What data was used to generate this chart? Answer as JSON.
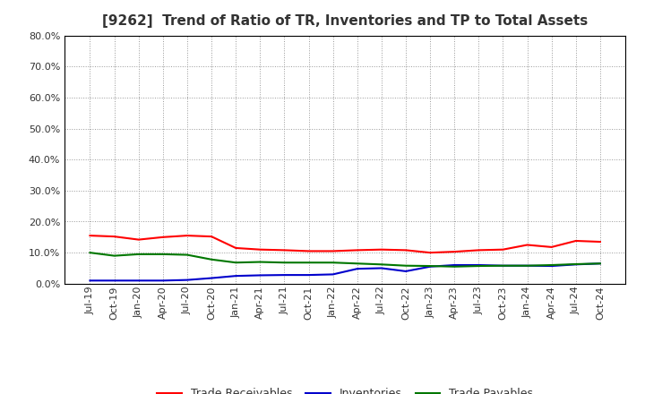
{
  "title": "[9262]  Trend of Ratio of TR, Inventories and TP to Total Assets",
  "x_labels": [
    "Jul-19",
    "Oct-19",
    "Jan-20",
    "Apr-20",
    "Jul-20",
    "Oct-20",
    "Jan-21",
    "Apr-21",
    "Jul-21",
    "Oct-21",
    "Jan-22",
    "Apr-22",
    "Jul-22",
    "Oct-22",
    "Jan-23",
    "Apr-23",
    "Jul-23",
    "Oct-23",
    "Jan-24",
    "Apr-24",
    "Jul-24",
    "Oct-24"
  ],
  "trade_receivables": [
    0.155,
    0.152,
    0.142,
    0.15,
    0.155,
    0.152,
    0.115,
    0.11,
    0.108,
    0.105,
    0.105,
    0.108,
    0.11,
    0.108,
    0.1,
    0.103,
    0.108,
    0.11,
    0.125,
    0.118,
    0.138,
    0.135
  ],
  "inventories": [
    0.01,
    0.01,
    0.01,
    0.01,
    0.012,
    0.018,
    0.025,
    0.027,
    0.028,
    0.028,
    0.03,
    0.048,
    0.05,
    0.04,
    0.055,
    0.06,
    0.06,
    0.058,
    0.058,
    0.057,
    0.062,
    0.065
  ],
  "trade_payables": [
    0.1,
    0.09,
    0.095,
    0.095,
    0.093,
    0.078,
    0.068,
    0.07,
    0.068,
    0.068,
    0.068,
    0.065,
    0.062,
    0.058,
    0.057,
    0.055,
    0.057,
    0.058,
    0.058,
    0.06,
    0.063,
    0.065
  ],
  "tr_color": "#ff0000",
  "inv_color": "#0000cc",
  "tp_color": "#007700",
  "ylim": [
    0.0,
    0.8
  ],
  "yticks": [
    0.0,
    0.1,
    0.2,
    0.3,
    0.4,
    0.5,
    0.6,
    0.7,
    0.8
  ],
  "bg_color": "#ffffff",
  "grid_color": "#999999",
  "title_color": "#333333",
  "legend_labels": [
    "Trade Receivables",
    "Inventories",
    "Trade Payables"
  ],
  "title_fontsize": 11,
  "tick_fontsize": 8,
  "legend_fontsize": 9
}
